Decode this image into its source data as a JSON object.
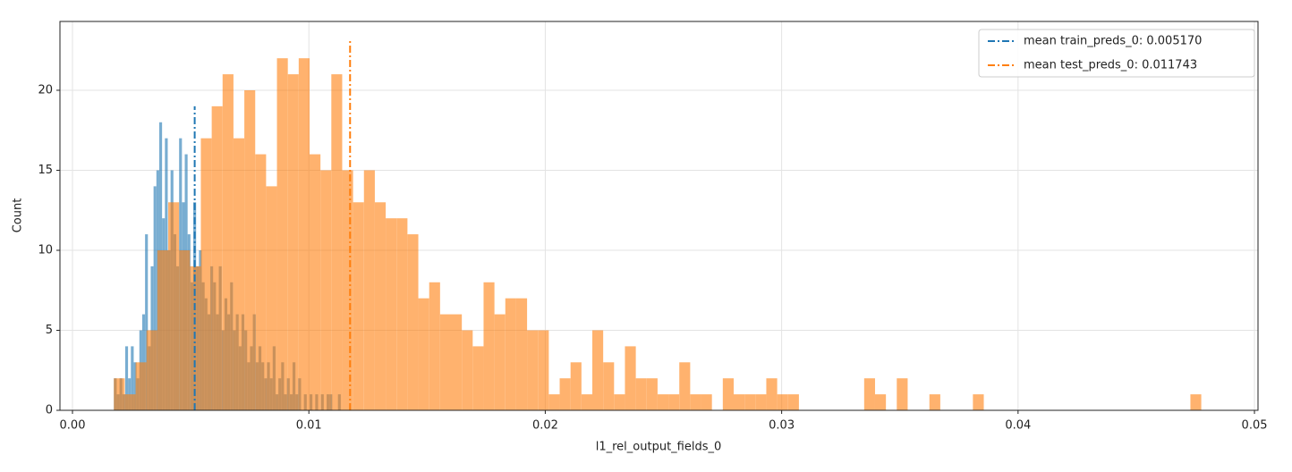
{
  "chart_data": {
    "type": "histogram",
    "xlabel": "l1_rel_output_fields_0",
    "ylabel": "Count",
    "xlim": [
      -0.00053,
      0.05015
    ],
    "ylim": [
      0,
      24.3
    ],
    "xticks": [
      {
        "value": 0,
        "label": "0.00"
      },
      0.01,
      0.02,
      0.03,
      0.04,
      0.05
    ],
    "yticks": [
      0,
      5,
      10,
      15,
      20
    ],
    "grid": true,
    "legend": "upper right",
    "series": [
      {
        "color": "#1f77b4",
        "opacity": 0.6,
        "bins": [
          0.00175,
          0.00187,
          0.00199,
          0.00211,
          0.00223,
          0.00235,
          0.00247,
          0.00259,
          0.00271,
          0.00283,
          0.00295,
          0.00307,
          0.00319,
          0.00331,
          0.00343,
          0.00355,
          0.00367,
          0.00379,
          0.00391,
          0.00403,
          0.00415,
          0.00427,
          0.00439,
          0.00451,
          0.00463,
          0.00475,
          0.00487,
          0.00499,
          0.00511,
          0.00523,
          0.00535,
          0.00547,
          0.00559,
          0.00571,
          0.00583,
          0.00595,
          0.00607,
          0.00619,
          0.00631,
          0.00643,
          0.00655,
          0.00667,
          0.00679,
          0.00691,
          0.00703,
          0.00715,
          0.00727,
          0.00739,
          0.00751,
          0.00763,
          0.00775,
          0.00787,
          0.00799,
          0.00811,
          0.00823,
          0.00835,
          0.00847,
          0.00859,
          0.00871,
          0.00883,
          0.00895,
          0.00907,
          0.00919,
          0.00931,
          0.00943,
          0.00955,
          0.00967,
          0.00979,
          0.00991,
          0.01003,
          0.01015,
          0.01027,
          0.01039,
          0.01051,
          0.01063,
          0.01075,
          0.01087,
          0.01099,
          0.01111,
          0.01123,
          0.01135
        ],
        "values": [
          2,
          1,
          2,
          1,
          4,
          2,
          4,
          3,
          2,
          5,
          6,
          11,
          4,
          9,
          14,
          15,
          18,
          12,
          17,
          10,
          15,
          11,
          9,
          17,
          13,
          16,
          11,
          8,
          13,
          9,
          10,
          8,
          7,
          6,
          9,
          8,
          6,
          9,
          5,
          7,
          6,
          8,
          5,
          6,
          4,
          6,
          5,
          3,
          4,
          6,
          3,
          4,
          3,
          2,
          3,
          2,
          4,
          1,
          2,
          3,
          1,
          2,
          1,
          3,
          1,
          2,
          0,
          1,
          0,
          1,
          0,
          1,
          0,
          1,
          0,
          1,
          1,
          0,
          0,
          1
        ]
      },
      {
        "color": "#ff7f0e",
        "opacity": 0.6,
        "bins": [
          0.00175,
          0.00221,
          0.00267,
          0.00313,
          0.00359,
          0.00405,
          0.00451,
          0.00497,
          0.00543,
          0.00589,
          0.00635,
          0.00681,
          0.00727,
          0.00773,
          0.00819,
          0.00865,
          0.00911,
          0.00957,
          0.01003,
          0.01049,
          0.01095,
          0.01141,
          0.01187,
          0.01233,
          0.01279,
          0.01325,
          0.01371,
          0.01417,
          0.01463,
          0.01509,
          0.01555,
          0.01601,
          0.01647,
          0.01693,
          0.01739,
          0.01785,
          0.01831,
          0.01877,
          0.01923,
          0.01969,
          0.02015,
          0.02061,
          0.02107,
          0.02153,
          0.02199,
          0.02245,
          0.02291,
          0.02337,
          0.02383,
          0.02429,
          0.02475,
          0.02521,
          0.02567,
          0.02613,
          0.02659,
          0.02705,
          0.02751,
          0.02797,
          0.02843,
          0.02889,
          0.02935,
          0.02981,
          0.03027,
          0.03073,
          0.03119,
          0.03165,
          0.03211,
          0.03257,
          0.03303,
          0.03349,
          0.03395,
          0.03441,
          0.03487,
          0.03533,
          0.03579,
          0.03625,
          0.03671,
          0.03717,
          0.03763,
          0.03809,
          0.03855,
          0.03901,
          0.03947,
          0.03993,
          0.04039,
          0.04085,
          0.04131,
          0.04177,
          0.04223,
          0.04269,
          0.04315,
          0.04361,
          0.04407,
          0.04453,
          0.04499,
          0.04545,
          0.04591,
          0.04637,
          0.04683,
          0.04729,
          0.04775
        ],
        "values": [
          2,
          1,
          3,
          5,
          10,
          13,
          10,
          9,
          17,
          19,
          21,
          17,
          20,
          16,
          14,
          22,
          21,
          22,
          16,
          15,
          21,
          15,
          13,
          15,
          13,
          12,
          12,
          11,
          7,
          8,
          6,
          6,
          5,
          4,
          8,
          6,
          7,
          7,
          5,
          5,
          1,
          2,
          3,
          1,
          5,
          3,
          1,
          4,
          2,
          2,
          1,
          1,
          3,
          1,
          1,
          0,
          2,
          1,
          1,
          1,
          2,
          1,
          1,
          0,
          0,
          0,
          0,
          0,
          0,
          2,
          1,
          0,
          2,
          0,
          0,
          1,
          0,
          0,
          0,
          1,
          0,
          0,
          0,
          0,
          0,
          0,
          0,
          0,
          0,
          0,
          0,
          0,
          0,
          0,
          0,
          0,
          0,
          0,
          0,
          1
        ]
      }
    ],
    "mean_lines": [
      {
        "name": "mean train_preds_0: 0.005170",
        "x": 0.00517,
        "ymax": 19,
        "color": "#1f77b4"
      },
      {
        "name": "mean test_preds_0: 0.011743",
        "x": 0.011743,
        "ymax": 23.2,
        "color": "#ff7f0e"
      }
    ]
  }
}
